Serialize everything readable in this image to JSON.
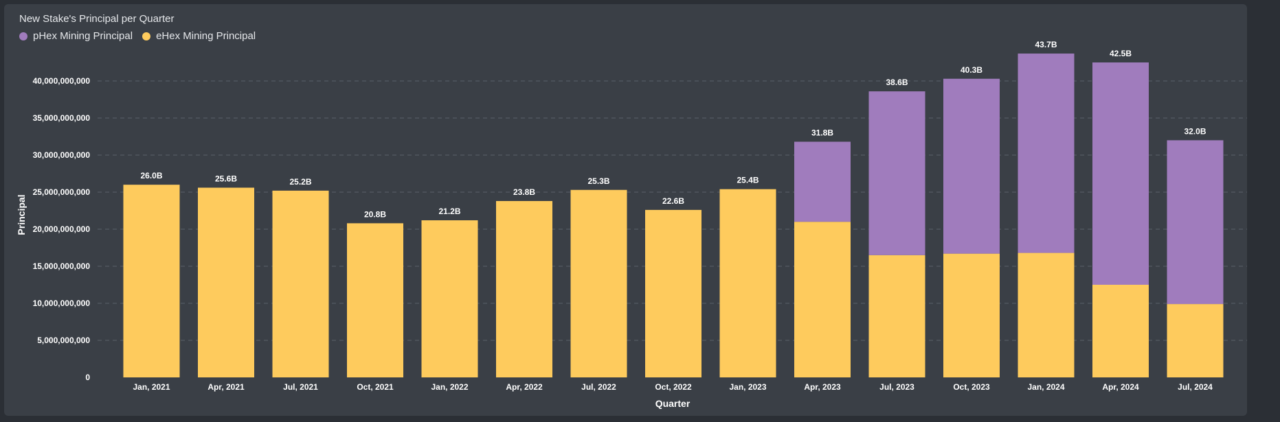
{
  "chart_data": {
    "type": "bar",
    "stacked": true,
    "title": "New Stake's Principal per Quarter",
    "xlabel": "Quarter",
    "ylabel": "Principal",
    "ylim": [
      0,
      45000000000
    ],
    "ytick_values": [
      0,
      5000000000,
      10000000000,
      15000000000,
      20000000000,
      25000000000,
      30000000000,
      35000000000,
      40000000000
    ],
    "ytick_labels": [
      "0",
      "5,000,000,000",
      "10,000,000,000",
      "15,000,000,000",
      "20,000,000,000",
      "25,000,000,000",
      "30,000,000,000",
      "35,000,000,000",
      "40,000,000,000"
    ],
    "grid": true,
    "legend_position": "top-left",
    "categories": [
      "Jan, 2021",
      "Apr, 2021",
      "Jul, 2021",
      "Oct, 2021",
      "Jan, 2022",
      "Apr, 2022",
      "Jul, 2022",
      "Oct, 2022",
      "Jan, 2023",
      "Apr, 2023",
      "Jul, 2023",
      "Oct, 2023",
      "Jan, 2024",
      "Apr, 2024",
      "Jul, 2024"
    ],
    "series": [
      {
        "name": "eHex Mining Principal",
        "color": "#fecb5d",
        "values": [
          26000000000,
          25600000000,
          25200000000,
          20800000000,
          21200000000,
          23800000000,
          25300000000,
          22600000000,
          25400000000,
          21000000000,
          16500000000,
          16700000000,
          16800000000,
          12500000000,
          9900000000
        ]
      },
      {
        "name": "pHex Mining Principal",
        "color": "#a07cbd",
        "values": [
          0,
          0,
          0,
          0,
          0,
          0,
          0,
          0,
          0,
          10800000000,
          22100000000,
          23600000000,
          26900000000,
          30000000000,
          22100000000
        ]
      }
    ],
    "totals_labels": [
      "26.0B",
      "25.6B",
      "25.2B",
      "20.8B",
      "21.2B",
      "23.8B",
      "25.3B",
      "22.6B",
      "25.4B",
      "31.8B",
      "38.6B",
      "40.3B",
      "43.7B",
      "42.5B",
      "32.0B"
    ],
    "totals": [
      26000000000,
      25600000000,
      25200000000,
      20800000000,
      21200000000,
      23800000000,
      25300000000,
      22600000000,
      25400000000,
      31800000000,
      38600000000,
      40300000000,
      43700000000,
      42500000000,
      32000000000
    ]
  },
  "legend": [
    {
      "label": "pHex Mining Principal",
      "color": "#a07cbd"
    },
    {
      "label": "eHex Mining Principal",
      "color": "#fecb5d"
    }
  ]
}
